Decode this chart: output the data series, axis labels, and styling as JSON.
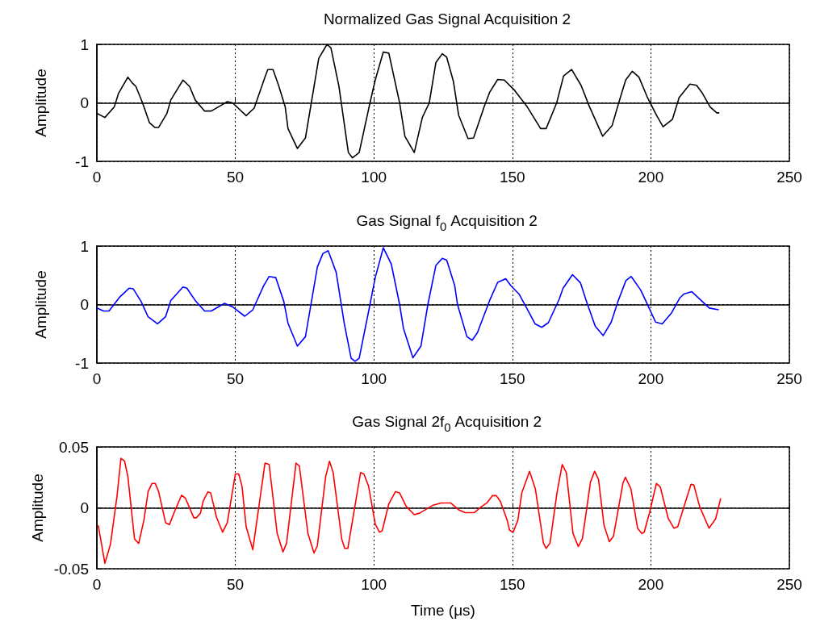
{
  "chart_data": [
    {
      "type": "line",
      "title": "Normalized Gas Signal Acquisition 2",
      "ylabel": "Amplitude",
      "xlim": [
        0,
        250
      ],
      "xticks": [
        0,
        50,
        100,
        150,
        200,
        250
      ],
      "ylim": [
        -1,
        1
      ],
      "yticks": [
        -1,
        0,
        1
      ],
      "grid": true,
      "x": [
        0,
        2.9,
        6.3,
        7.8,
        11.2,
        12.6,
        14.1,
        16.5,
        19,
        20.9,
        22.3,
        25.3,
        26.7,
        31.1,
        33.5,
        35.5,
        38.9,
        41.3,
        44.2,
        47.1,
        49,
        53.9,
        56.8,
        60.7,
        61.7,
        63.6,
        65.6,
        68,
        69,
        72.4,
        75.3,
        80.1,
        83.1,
        84.5,
        87.4,
        90.8,
        92.3,
        94.7,
        98.6,
        100.5,
        103.4,
        105.4,
        109.3,
        111.2,
        114.6,
        117.5,
        120,
        122.4,
        124.7,
        126.3,
        128.7,
        130.6,
        134,
        136,
        139.8,
        141.8,
        144.7,
        147.1,
        150.5,
        155.4,
        160.2,
        162.2,
        166,
        168.5,
        171.4,
        174.8,
        177.7,
        182.6,
        186,
        188.4,
        190.9,
        193.3,
        195.7,
        198.6,
        202,
        204.4,
        207.8,
        210.2,
        214.1,
        216.5,
        218.4,
        221.4,
        223.8,
        224.7
      ],
      "series": [
        {
          "color": "#000000",
          "values": [
            -0.18,
            -0.25,
            -0.07,
            0.16,
            0.44,
            0.35,
            0.28,
            0,
            -0.34,
            -0.42,
            -0.42,
            -0.18,
            0.05,
            0.39,
            0.28,
            0.05,
            -0.14,
            -0.14,
            -0.06,
            0.02,
            0,
            -0.22,
            -0.09,
            0.44,
            0.57,
            0.57,
            0.3,
            -0.07,
            -0.44,
            -0.78,
            -0.6,
            0.76,
            1,
            0.94,
            0.28,
            -0.85,
            -0.94,
            -0.85,
            0,
            0.39,
            0.87,
            0.85,
            0,
            -0.57,
            -0.85,
            -0.25,
            0,
            0.69,
            0.84,
            0.78,
            0.37,
            -0.21,
            -0.61,
            -0.6,
            -0.07,
            0.18,
            0.4,
            0.39,
            0.23,
            -0.07,
            -0.44,
            -0.44,
            0,
            0.46,
            0.57,
            0.3,
            -0.05,
            -0.57,
            -0.39,
            0,
            0.39,
            0.54,
            0.44,
            0.11,
            -0.21,
            -0.41,
            -0.28,
            0.09,
            0.32,
            0.3,
            0.18,
            -0.07,
            -0.17,
            -0.17
          ]
        }
      ]
    },
    {
      "type": "line",
      "title": "Gas Signal f$_{0}$ Acquisition 2",
      "ylabel": "Amplitude",
      "xlim": [
        0,
        250
      ],
      "xticks": [
        0,
        50,
        100,
        150,
        200,
        250
      ],
      "ylim": [
        -1,
        1
      ],
      "yticks": [
        -1,
        0,
        1
      ],
      "grid": true,
      "x": [
        0,
        2.4,
        4.4,
        8.3,
        11.7,
        13.1,
        16,
        18.5,
        21.9,
        24.8,
        26.7,
        31.1,
        32.5,
        35.5,
        38.9,
        41.3,
        46.1,
        49,
        53.4,
        56.3,
        60.2,
        62.2,
        64.6,
        67.5,
        69,
        72.4,
        75.3,
        79.6,
        81.6,
        83.5,
        86.4,
        89.3,
        91.8,
        93.2,
        94.7,
        98.6,
        100.5,
        103.4,
        106.3,
        109.3,
        110.7,
        114.1,
        117,
        119.5,
        122.4,
        124.7,
        126.3,
        129.2,
        130.2,
        133.6,
        135.5,
        137.4,
        141.8,
        144.7,
        147.6,
        149.5,
        152.4,
        156.3,
        158.2,
        160.6,
        163,
        166.9,
        168.3,
        171.7,
        174.6,
        176.5,
        179.9,
        182.8,
        185.7,
        188.1,
        191,
        192.9,
        196.3,
        198.3,
        201.7,
        204.1,
        207.5,
        210.4,
        211.9,
        214.8,
        218.6,
        221.1,
        224.5
      ],
      "series": [
        {
          "color": "#0000ff",
          "values": [
            -0.06,
            -0.11,
            -0.11,
            0.13,
            0.28,
            0.27,
            0.05,
            -0.21,
            -0.33,
            -0.21,
            0.07,
            0.3,
            0.28,
            0.07,
            -0.11,
            -0.11,
            0.02,
            -0.04,
            -0.2,
            -0.09,
            0.32,
            0.48,
            0.46,
            0.05,
            -0.32,
            -0.71,
            -0.55,
            0.64,
            0.87,
            0.92,
            0.55,
            -0.32,
            -0.92,
            -0.97,
            -0.92,
            0,
            0.46,
            0.97,
            0.69,
            0,
            -0.41,
            -0.91,
            -0.71,
            0,
            0.67,
            0.79,
            0.76,
            0.32,
            0,
            -0.55,
            -0.61,
            -0.48,
            0.07,
            0.38,
            0.44,
            0.32,
            0.18,
            -0.16,
            -0.33,
            -0.39,
            -0.31,
            0.09,
            0.28,
            0.51,
            0.37,
            0.09,
            -0.37,
            -0.53,
            -0.3,
            0.05,
            0.41,
            0.48,
            0.25,
            0.05,
            -0.3,
            -0.33,
            -0.14,
            0.11,
            0.18,
            0.22,
            0.05,
            -0.06,
            -0.09
          ]
        }
      ]
    },
    {
      "type": "line",
      "title": "Gas Signal 2f$_{0}$ Acquisition 2",
      "ylabel": "Amplitude",
      "xlabel": "Time (μs)",
      "xlim": [
        0,
        250
      ],
      "xticks": [
        0,
        50,
        100,
        150,
        200,
        250
      ],
      "ylim": [
        -0.05,
        0.05
      ],
      "yticks": [
        -0.05,
        0,
        0.05
      ],
      "grid": true,
      "x": [
        0.5,
        2.9,
        4.9,
        7.3,
        8.7,
        10,
        11.2,
        13.6,
        15.1,
        17,
        18.5,
        19.9,
        21.1,
        22.3,
        24.8,
        26.2,
        28.2,
        30.6,
        32,
        35,
        35.9,
        37.4,
        38.4,
        40.1,
        41.1,
        43.2,
        45.4,
        47.1,
        50,
        51.2,
        52.4,
        53.9,
        56.3,
        60.7,
        62.2,
        65.1,
        67.2,
        68.5,
        71.9,
        73.1,
        76.2,
        78.4,
        79.6,
        82.6,
        84,
        85.3,
        88.4,
        89.5,
        90.6,
        95.2,
        96.4,
        98.1,
        100.5,
        102,
        103,
        105.4,
        107.8,
        109.3,
        111.7,
        114.6,
        116.5,
        121.4,
        124.3,
        127.7,
        130.6,
        133,
        136.2,
        138.9,
        140.8,
        142.8,
        144.2,
        145.7,
        148.1,
        149,
        150.3,
        152,
        153.4,
        156.2,
        158.3,
        161.2,
        162.2,
        163.6,
        166.1,
        168,
        169.5,
        171.9,
        173.8,
        175.3,
        178.2,
        179.7,
        181.1,
        183.1,
        185,
        186.5,
        189.9,
        190.8,
        192.8,
        195.2,
        196.7,
        197.6,
        199.6,
        202,
        203.4,
        206.3,
        208.3,
        209.7,
        212.6,
        214.5,
        215.5,
        217.6,
        221,
        223.4,
        225.2
      ],
      "series": [
        {
          "color": "#ff0000",
          "values": [
            -0.0144,
            -0.0456,
            -0.03,
            0.01,
            0.0407,
            0.0384,
            0.0256,
            -0.0256,
            -0.0293,
            -0.01,
            0.0133,
            0.02,
            0.02,
            0.0133,
            -0.0122,
            -0.0138,
            -0.0022,
            0.0104,
            0.0078,
            -0.0082,
            -0.0082,
            -0.0044,
            0.0056,
            0.0131,
            0.0122,
            -0.0078,
            -0.02,
            -0.0122,
            0.0278,
            0.0278,
            0.0178,
            -0.0156,
            -0.0344,
            0.0367,
            0.0356,
            -0.0211,
            -0.0362,
            -0.0289,
            0.0367,
            0.0344,
            -0.0211,
            -0.0371,
            -0.0311,
            0.0256,
            0.0382,
            0.0289,
            -0.0256,
            -0.0333,
            -0.0333,
            0.0289,
            0.0278,
            0.0178,
            -0.0133,
            -0.02,
            -0.0189,
            0.0033,
            0.0133,
            0.0122,
            0.0011,
            -0.0056,
            -0.0044,
            0.0022,
            0.004,
            0.004,
            -0.0016,
            -0.004,
            -0.004,
            0.0011,
            0.004,
            0.01,
            0.01,
            0.0051,
            -0.01,
            -0.0184,
            -0.02,
            -0.01,
            0.0122,
            0.03,
            0.0156,
            -0.0289,
            -0.0333,
            -0.0289,
            0.0122,
            0.0356,
            0.0289,
            -0.0211,
            -0.0318,
            -0.0251,
            0.0211,
            0.03,
            0.0233,
            -0.0144,
            -0.0278,
            -0.0233,
            0.02,
            0.0251,
            0.0156,
            -0.0167,
            -0.0211,
            -0.02,
            -0.0033,
            0.02,
            0.0171,
            -0.0089,
            -0.0167,
            -0.0156,
            0.0056,
            0.0193,
            0.0189,
            0.0011,
            -0.0167,
            -0.0089,
            0.0078
          ]
        }
      ]
    }
  ]
}
